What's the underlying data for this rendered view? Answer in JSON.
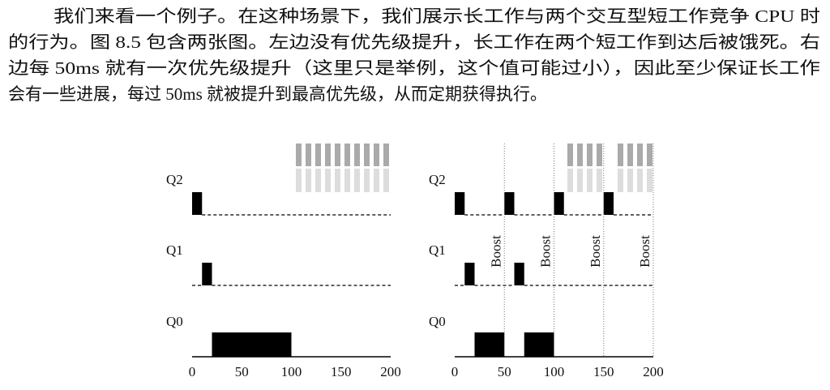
{
  "paragraph": {
    "lines": [
      "我们来看一个例子。在这种场景下，我们展示长工作与两个交互型短工作竞争 CPU 时",
      "的行为。图 8.5 包含两张图。左边没有优先级提升，长工作在两个短工作到达后被饿死。右",
      "边每 50ms 就有一次优先级提升（这里只是举例，这个值可能过小），因此至少保证长工作",
      "会有一些进展，每过 50ms 就被提升到最高优先级，从而定期获得执行。"
    ]
  },
  "figure": {
    "panels": [
      {
        "queues": [
          "Q2",
          "Q1",
          "Q0"
        ],
        "xlim": [
          0,
          200
        ],
        "xticks": [
          0,
          50,
          100,
          150,
          200
        ]
      },
      {
        "queues": [
          "Q2",
          "Q1",
          "Q0"
        ],
        "xlim": [
          0,
          200
        ],
        "xticks": [
          0,
          50,
          100,
          150,
          200
        ],
        "boost_labels": [
          "Boost",
          "Boost",
          "Boost",
          "Boost"
        ]
      }
    ]
  }
}
